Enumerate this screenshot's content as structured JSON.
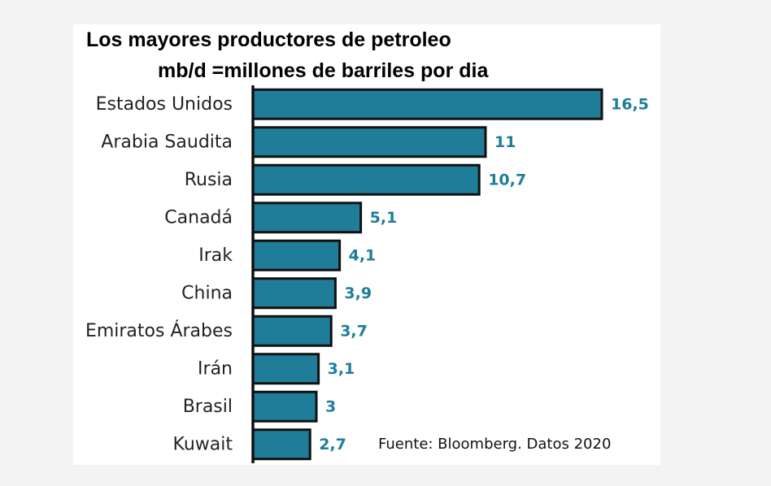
{
  "chart_data": {
    "type": "bar",
    "orientation": "horizontal",
    "title": "Los mayores productores de petroleo",
    "subtitle": "mb/d =millones de barriles por dia",
    "categories": [
      "Estados Unidos",
      "Arabia Saudita",
      "Rusia",
      "Canadá",
      "Irak",
      "China",
      "Emiratos Árabes",
      "Irán",
      "Brasil",
      "Kuwait"
    ],
    "values": [
      16.5,
      11,
      10.7,
      5.1,
      4.1,
      3.9,
      3.7,
      3.1,
      3,
      2.7
    ],
    "value_labels": [
      "16,5",
      "11",
      "10,7",
      "5,1",
      "4,1",
      "3,9",
      "3,7",
      "3,1",
      "3",
      "2,7"
    ],
    "xlim": [
      0,
      16.5
    ],
    "grid": false,
    "legend": "none",
    "source": "Fuente: Bloomberg. Datos 2020",
    "colors": {
      "bar": "#1f7d99",
      "bar_outline": "#111111",
      "value_label": "#1f7d99",
      "axis": "#111111"
    }
  }
}
